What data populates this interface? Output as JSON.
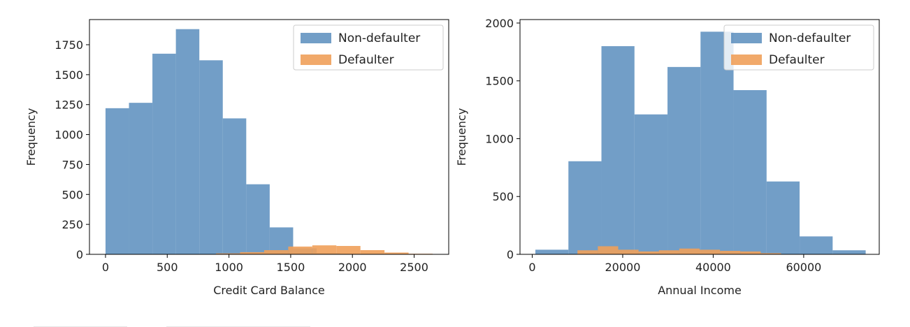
{
  "chart_data": [
    {
      "type": "histogram",
      "xlabel": "Credit Card Balance",
      "ylabel": "Frequency",
      "xlim": [
        -130,
        2780
      ],
      "ylim": [
        0,
        1960
      ],
      "xticks": [
        0,
        500,
        1000,
        1500,
        2000,
        2500
      ],
      "yticks": [
        0,
        250,
        500,
        750,
        1000,
        1250,
        1500,
        1750
      ],
      "grid": false,
      "legend": {
        "placement": "top-right",
        "entries": [
          "Non-defaulter",
          "Defaulter"
        ]
      },
      "series": [
        {
          "name": "Non-defaulter",
          "color": "#4f86b9",
          "opacity": 0.8,
          "bins": [
            0,
            190,
            380,
            570,
            760,
            950,
            1140,
            1330,
            1520,
            1710,
            1900
          ],
          "counts": [
            1220,
            1265,
            1675,
            1880,
            1620,
            1135,
            585,
            225,
            50,
            10
          ]
        },
        {
          "name": "Defaulter",
          "color": "#f0a05a",
          "opacity": 0.9,
          "bins": [
            700,
            895,
            1090,
            1285,
            1480,
            1675,
            1870,
            2065,
            2260,
            2455,
            2650
          ],
          "counts": [
            2,
            8,
            18,
            35,
            65,
            75,
            70,
            35,
            15,
            5
          ]
        }
      ]
    },
    {
      "type": "histogram",
      "xlabel": "Annual Income",
      "ylabel": "Frequency",
      "xlim": [
        -2700,
        76700
      ],
      "ylim": [
        0,
        2030
      ],
      "xticks": [
        0,
        20000,
        40000,
        60000
      ],
      "yticks": [
        0,
        500,
        1000,
        1500,
        2000
      ],
      "grid": false,
      "legend": {
        "placement": "top-right",
        "entries": [
          "Non-defaulter",
          "Defaulter"
        ]
      },
      "series": [
        {
          "name": "Non-defaulter",
          "color": "#4f86b9",
          "opacity": 0.8,
          "bins": [
            700,
            8000,
            15300,
            22600,
            29900,
            37200,
            44500,
            51800,
            59100,
            66400,
            73700
          ],
          "counts": [
            40,
            805,
            1800,
            1210,
            1620,
            1925,
            1420,
            630,
            155,
            35
          ]
        },
        {
          "name": "Defaulter",
          "color": "#f0a05a",
          "opacity": 0.9,
          "bins": [
            10000,
            14500,
            19000,
            23500,
            28000,
            32500,
            37000,
            41500,
            46000,
            50500,
            55000
          ],
          "counts": [
            35,
            70,
            40,
            25,
            35,
            50,
            40,
            30,
            25,
            10
          ]
        }
      ]
    }
  ]
}
